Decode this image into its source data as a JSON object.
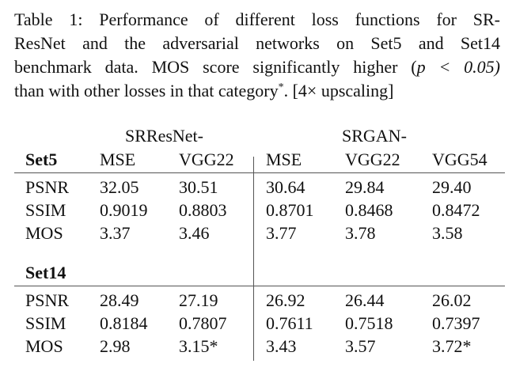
{
  "caption": {
    "lines": [
      "Table 1: Performance of different loss functions for SR-",
      "ResNet and the adversarial networks on Set5 and Set14",
      "benchmark data. MOS score significantly higher (",
      "than with other losses in that category"
    ],
    "math": "p < 0.05)",
    "star": "*",
    "tail": ". [4× upscaling]"
  },
  "table": {
    "group_headers": [
      "SRResNet-",
      "SRGAN-"
    ],
    "columns": [
      "MSE",
      "VGG22",
      "MSE",
      "VGG22",
      "VGG54"
    ],
    "sections": [
      {
        "name": "Set5",
        "rows": [
          {
            "metric": "PSNR",
            "values": [
              "32.05",
              "30.51",
              "30.64",
              "29.84",
              "29.40"
            ]
          },
          {
            "metric": "SSIM",
            "values": [
              "0.9019",
              "0.8803",
              "0.8701",
              "0.8468",
              "0.8472"
            ]
          },
          {
            "metric": "MOS",
            "values": [
              "3.37",
              "3.46",
              "3.77",
              "3.78",
              "3.58"
            ]
          }
        ]
      },
      {
        "name": "Set14",
        "rows": [
          {
            "metric": "PSNR",
            "values": [
              "28.49",
              "27.19",
              "26.92",
              "26.44",
              "26.02"
            ]
          },
          {
            "metric": "SSIM",
            "values": [
              "0.8184",
              "0.7807",
              "0.7611",
              "0.7518",
              "0.7397"
            ]
          },
          {
            "metric": "MOS",
            "values": [
              "2.98",
              "3.15*",
              "3.43",
              "3.57",
              "3.72*"
            ]
          }
        ]
      }
    ]
  }
}
